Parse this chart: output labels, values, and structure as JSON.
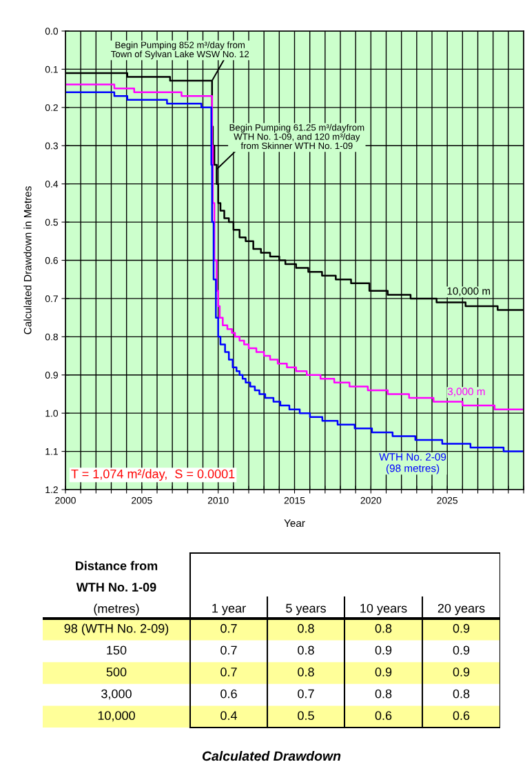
{
  "chart_data": [
    {
      "type": "step",
      "xlabel": "Year",
      "ylabel": "Calculated Drawdown in Metres",
      "xlim": [
        2000,
        2030
      ],
      "ylim": [
        1.2,
        0.0
      ],
      "xticks": [
        2000,
        {
          "value": 2001,
          "label": null
        },
        {
          "value": 2002,
          "label": null
        },
        {
          "value": 2003,
          "label": null
        },
        {
          "value": 2004,
          "label": null
        },
        2005,
        {
          "value": 2006,
          "label": null
        },
        {
          "value": 2007,
          "label": null
        },
        {
          "value": 2008,
          "label": null
        },
        {
          "value": 2009,
          "label": null
        },
        2010,
        {
          "value": 2011,
          "label": null
        },
        {
          "value": 2012,
          "label": null
        },
        {
          "value": 2013,
          "label": null
        },
        {
          "value": 2014,
          "label": null
        },
        2015,
        {
          "value": 2016,
          "label": null
        },
        {
          "value": 2017,
          "label": null
        },
        {
          "value": 2018,
          "label": null
        },
        {
          "value": 2019,
          "label": null
        },
        2020,
        {
          "value": 2021,
          "label": null
        },
        {
          "value": 2022,
          "label": null
        },
        {
          "value": 2023,
          "label": null
        },
        {
          "value": 2024,
          "label": null
        },
        2025,
        {
          "value": 2026,
          "label": null
        },
        {
          "value": 2027,
          "label": null
        },
        {
          "value": 2028,
          "label": null
        },
        {
          "value": 2029,
          "label": null
        },
        {
          "value": 2030,
          "label": null
        }
      ],
      "yticks": [
        {
          "value": 0,
          "label": "0.0"
        },
        0.1,
        0.2,
        0.3,
        0.4,
        0.5,
        0.6,
        0.7,
        0.8,
        0.9,
        {
          "value": 1,
          "label": "1.0"
        },
        1.1,
        1.2
      ],
      "grid": true,
      "legend": false,
      "marker": "none",
      "line_style": "solid",
      "series": [
        {
          "name": "10,000 m",
          "color": "#000000",
          "x": [
            2000,
            2004.05,
            2006.85,
            2009.6,
            2009.65,
            2009.75,
            2009.9,
            2010.0,
            2010.15,
            2010.4,
            2010.7,
            2011.0,
            2011.4,
            2011.8,
            2012.3,
            2012.8,
            2013.4,
            2014.0,
            2014.4,
            2015.1,
            2015.9,
            2016.8,
            2017.7,
            2018.7,
            2019.9,
            2021.1,
            2022.6,
            2024.3,
            2026.2,
            2028.3,
            2030
          ],
          "values": [
            0.11,
            0.12,
            0.13,
            0.25,
            0.3,
            0.35,
            0.4,
            0.45,
            0.47,
            0.49,
            0.5,
            0.52,
            0.54,
            0.55,
            0.57,
            0.58,
            0.59,
            0.6,
            0.61,
            0.62,
            0.63,
            0.64,
            0.65,
            0.66,
            0.68,
            0.69,
            0.7,
            0.71,
            0.72,
            0.73,
            0.73
          ]
        },
        {
          "name": "3,000 m",
          "color": "#ff00ff",
          "x": [
            2000,
            2003.2,
            2004.5,
            2007.6,
            2009.6,
            2009.65,
            2009.75,
            2009.9,
            2010.0,
            2010.1,
            2010.3,
            2010.6,
            2010.9,
            2011.1,
            2011.4,
            2011.7,
            2012.0,
            2012.5,
            2013.0,
            2013.4,
            2013.9,
            2014.5,
            2015.1,
            2015.8,
            2016.7,
            2017.6,
            2018.6,
            2019.8,
            2021.1,
            2022.5,
            2024.1,
            2026.0,
            2028.1,
            2030
          ],
          "values": [
            0.14,
            0.15,
            0.16,
            0.17,
            0.3,
            0.45,
            0.6,
            0.68,
            0.72,
            0.75,
            0.77,
            0.78,
            0.79,
            0.8,
            0.81,
            0.82,
            0.83,
            0.84,
            0.85,
            0.86,
            0.87,
            0.88,
            0.89,
            0.9,
            0.91,
            0.92,
            0.93,
            0.94,
            0.95,
            0.96,
            0.97,
            0.98,
            0.99,
            0.99
          ]
        },
        {
          "name": "WTH No. 2-09\n(98 metres)",
          "color": "#0000ff",
          "x": [
            2000,
            2003.2,
            2004.05,
            2006.65,
            2008.9,
            2009.55,
            2009.6,
            2009.7,
            2009.85,
            2010.0,
            2010.15,
            2010.45,
            2010.7,
            2010.95,
            2011.2,
            2011.4,
            2011.6,
            2011.8,
            2012.1,
            2012.4,
            2012.7,
            2013.08,
            2013.62,
            2014.07,
            2014.66,
            2015.34,
            2016.01,
            2016.82,
            2017.82,
            2018.94,
            2020.07,
            2021.42,
            2022.91,
            2024.67,
            2026.52,
            2028.69,
            2030
          ],
          "values": [
            0.16,
            0.17,
            0.18,
            0.19,
            0.2,
            0.35,
            0.5,
            0.65,
            0.75,
            0.8,
            0.82,
            0.84,
            0.86,
            0.88,
            0.89,
            0.9,
            0.91,
            0.92,
            0.93,
            0.94,
            0.95,
            0.96,
            0.97,
            0.98,
            0.99,
            1.0,
            1.01,
            1.02,
            1.03,
            1.04,
            1.05,
            1.06,
            1.07,
            1.08,
            1.09,
            1.1,
            1.1
          ]
        }
      ],
      "annotations": [
        {
          "text": "Begin Pumping 852 m³/day from\nTown of Sylvan Lake WSW No. 12",
          "x": 2009.6,
          "y": 0.13
        },
        {
          "text": "Begin Pumping 61.25 m³/dayfrom\nWTH No. 1-09, and 120 m³/day\nfrom Skinner WTH No. 1-09",
          "x": 2009.95,
          "y": 0.36
        },
        "T = 1,074 m²/day,  S = 0.0001"
      ]
    },
    {
      "type": "other",
      "title": "Calculated Drawdown",
      "ylabel": "Distance from\nWTH No. 1-09\n(metres)",
      "categories": [
        "1 year",
        "5 years",
        "10 years",
        "20 years"
      ],
      "y_categories": [
        "98 (WTH No. 2-09)",
        "150",
        "500",
        "3,000",
        "10,000"
      ],
      "cell_labels": [
        [
          "0.7",
          "0.8",
          "0.8",
          "0.9"
        ],
        [
          "0.7",
          "0.8",
          "0.9",
          "0.9"
        ],
        [
          "0.7",
          "0.8",
          "0.9",
          "0.9"
        ],
        [
          "0.6",
          "0.7",
          "0.8",
          "0.8"
        ],
        [
          "0.4",
          "0.5",
          "0.6",
          "0.6"
        ]
      ],
      "data_labels": true
    }
  ]
}
